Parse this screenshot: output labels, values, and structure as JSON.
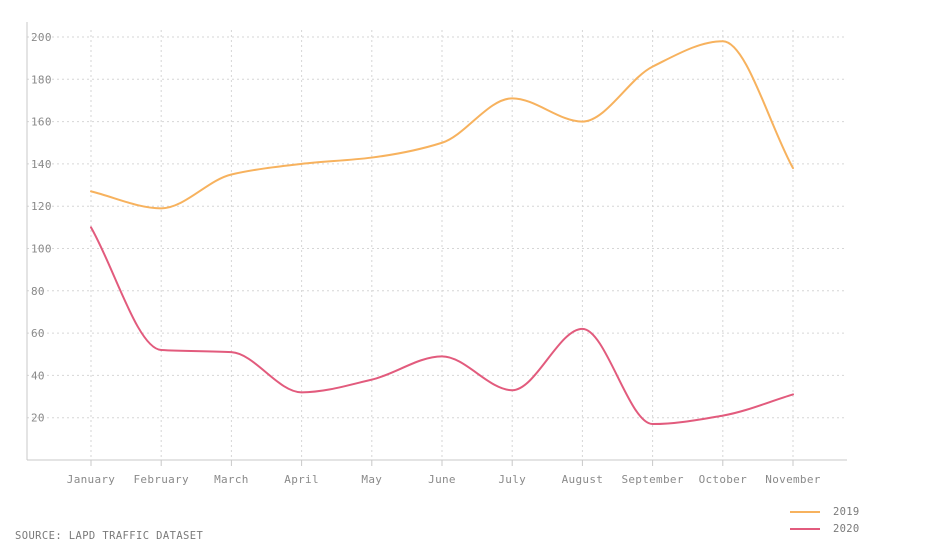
{
  "chart_data": {
    "type": "line",
    "categories": [
      "January",
      "February",
      "March",
      "April",
      "May",
      "June",
      "July",
      "August",
      "September",
      "October",
      "November"
    ],
    "series": [
      {
        "name": "2019",
        "color": "#f7b25e",
        "values": [
          127,
          119,
          135,
          140,
          143,
          150,
          171,
          160,
          186,
          198,
          138
        ]
      },
      {
        "name": "2020",
        "color": "#e25b7d",
        "values": [
          110,
          52,
          51,
          32,
          38,
          49,
          33,
          62,
          17,
          21,
          31
        ]
      }
    ],
    "ylim": [
      0,
      200
    ],
    "yticks": [
      20,
      40,
      60,
      80,
      100,
      120,
      140,
      160,
      180,
      200
    ],
    "grid": true,
    "legend": "bottom-right",
    "source": "SOURCE: LAPD TRAFFIC DATASET"
  }
}
